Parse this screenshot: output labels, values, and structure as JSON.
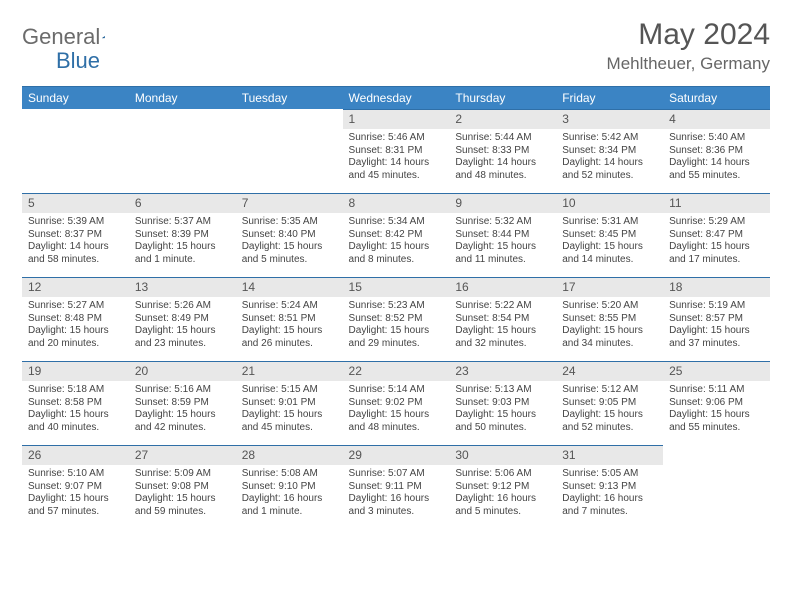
{
  "logo": {
    "text_gray": "General",
    "text_blue": "Blue",
    "tri_color": "#2f6fa7"
  },
  "title": "May 2024",
  "location": "Mehltheuer, Germany",
  "colors": {
    "header_bg": "#3b84c4",
    "daynum_bg": "#e8e8e8",
    "rule": "#2f6fa7",
    "text": "#444"
  },
  "weekdays": [
    "Sunday",
    "Monday",
    "Tuesday",
    "Wednesday",
    "Thursday",
    "Friday",
    "Saturday"
  ],
  "grid": [
    [
      null,
      null,
      null,
      {
        "n": "1",
        "sr": "5:46 AM",
        "ss": "8:31 PM",
        "dl": "14 hours and 45 minutes."
      },
      {
        "n": "2",
        "sr": "5:44 AM",
        "ss": "8:33 PM",
        "dl": "14 hours and 48 minutes."
      },
      {
        "n": "3",
        "sr": "5:42 AM",
        "ss": "8:34 PM",
        "dl": "14 hours and 52 minutes."
      },
      {
        "n": "4",
        "sr": "5:40 AM",
        "ss": "8:36 PM",
        "dl": "14 hours and 55 minutes."
      }
    ],
    [
      {
        "n": "5",
        "sr": "5:39 AM",
        "ss": "8:37 PM",
        "dl": "14 hours and 58 minutes."
      },
      {
        "n": "6",
        "sr": "5:37 AM",
        "ss": "8:39 PM",
        "dl": "15 hours and 1 minute."
      },
      {
        "n": "7",
        "sr": "5:35 AM",
        "ss": "8:40 PM",
        "dl": "15 hours and 5 minutes."
      },
      {
        "n": "8",
        "sr": "5:34 AM",
        "ss": "8:42 PM",
        "dl": "15 hours and 8 minutes."
      },
      {
        "n": "9",
        "sr": "5:32 AM",
        "ss": "8:44 PM",
        "dl": "15 hours and 11 minutes."
      },
      {
        "n": "10",
        "sr": "5:31 AM",
        "ss": "8:45 PM",
        "dl": "15 hours and 14 minutes."
      },
      {
        "n": "11",
        "sr": "5:29 AM",
        "ss": "8:47 PM",
        "dl": "15 hours and 17 minutes."
      }
    ],
    [
      {
        "n": "12",
        "sr": "5:27 AM",
        "ss": "8:48 PM",
        "dl": "15 hours and 20 minutes."
      },
      {
        "n": "13",
        "sr": "5:26 AM",
        "ss": "8:49 PM",
        "dl": "15 hours and 23 minutes."
      },
      {
        "n": "14",
        "sr": "5:24 AM",
        "ss": "8:51 PM",
        "dl": "15 hours and 26 minutes."
      },
      {
        "n": "15",
        "sr": "5:23 AM",
        "ss": "8:52 PM",
        "dl": "15 hours and 29 minutes."
      },
      {
        "n": "16",
        "sr": "5:22 AM",
        "ss": "8:54 PM",
        "dl": "15 hours and 32 minutes."
      },
      {
        "n": "17",
        "sr": "5:20 AM",
        "ss": "8:55 PM",
        "dl": "15 hours and 34 minutes."
      },
      {
        "n": "18",
        "sr": "5:19 AM",
        "ss": "8:57 PM",
        "dl": "15 hours and 37 minutes."
      }
    ],
    [
      {
        "n": "19",
        "sr": "5:18 AM",
        "ss": "8:58 PM",
        "dl": "15 hours and 40 minutes."
      },
      {
        "n": "20",
        "sr": "5:16 AM",
        "ss": "8:59 PM",
        "dl": "15 hours and 42 minutes."
      },
      {
        "n": "21",
        "sr": "5:15 AM",
        "ss": "9:01 PM",
        "dl": "15 hours and 45 minutes."
      },
      {
        "n": "22",
        "sr": "5:14 AM",
        "ss": "9:02 PM",
        "dl": "15 hours and 48 minutes."
      },
      {
        "n": "23",
        "sr": "5:13 AM",
        "ss": "9:03 PM",
        "dl": "15 hours and 50 minutes."
      },
      {
        "n": "24",
        "sr": "5:12 AM",
        "ss": "9:05 PM",
        "dl": "15 hours and 52 minutes."
      },
      {
        "n": "25",
        "sr": "5:11 AM",
        "ss": "9:06 PM",
        "dl": "15 hours and 55 minutes."
      }
    ],
    [
      {
        "n": "26",
        "sr": "5:10 AM",
        "ss": "9:07 PM",
        "dl": "15 hours and 57 minutes."
      },
      {
        "n": "27",
        "sr": "5:09 AM",
        "ss": "9:08 PM",
        "dl": "15 hours and 59 minutes."
      },
      {
        "n": "28",
        "sr": "5:08 AM",
        "ss": "9:10 PM",
        "dl": "16 hours and 1 minute."
      },
      {
        "n": "29",
        "sr": "5:07 AM",
        "ss": "9:11 PM",
        "dl": "16 hours and 3 minutes."
      },
      {
        "n": "30",
        "sr": "5:06 AM",
        "ss": "9:12 PM",
        "dl": "16 hours and 5 minutes."
      },
      {
        "n": "31",
        "sr": "5:05 AM",
        "ss": "9:13 PM",
        "dl": "16 hours and 7 minutes."
      },
      null
    ]
  ],
  "labels": {
    "sunrise": "Sunrise: ",
    "sunset": "Sunset: ",
    "daylight": "Daylight: "
  }
}
